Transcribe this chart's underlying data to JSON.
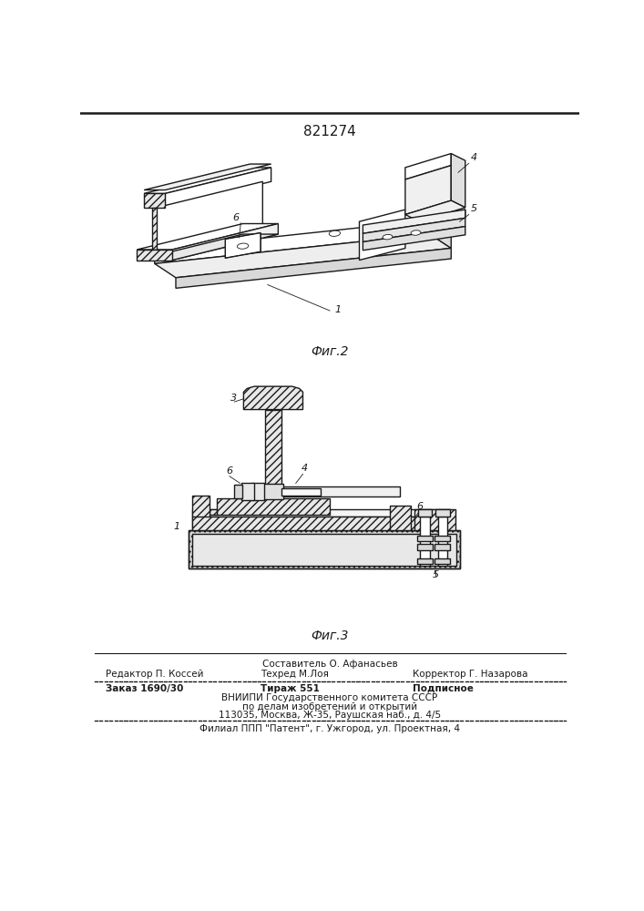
{
  "patent_number": "821274",
  "fig2_label": "Фиг.2",
  "fig3_label": "Фиг.3",
  "footer_line1_left": "Редактор П. Коссей",
  "footer_sestavitel": "Составитель О. Афанасьев",
  "footer_tekhred": "Техред М.Лоя",
  "footer_korrektor": "Корректор Г. Назарова",
  "footer_zakaz": "Заказ 1690/30",
  "footer_tirazh": "Тираж 551",
  "footer_podpisnoe": "Подписное",
  "footer_vniip1": "ВНИИПИ Государственного комитета СССР",
  "footer_vniip2": "по делам изобретений и открытий",
  "footer_vniip3": "113035, Москва, Ж-35, Раушская наб., д. 4/5",
  "footer_filial": "Филиал ППП \"Патент\", г. Ужгород, ул. Проектная, 4"
}
